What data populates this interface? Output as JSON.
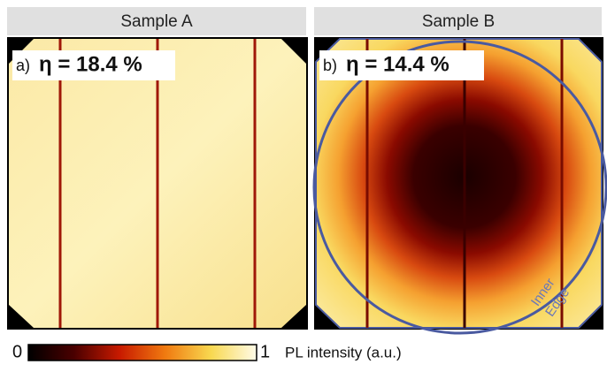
{
  "panels": [
    {
      "title": "Sample A",
      "label": "a)",
      "efficiency": "η = 18.4 %"
    },
    {
      "title": "Sample B",
      "label": "b)",
      "efficiency": "η = 14.4 %",
      "annotation": [
        "Inner",
        "Edge"
      ]
    }
  ],
  "colorbar": {
    "min": "0",
    "max": "1",
    "label": "PL intensity (a.u.)"
  }
}
